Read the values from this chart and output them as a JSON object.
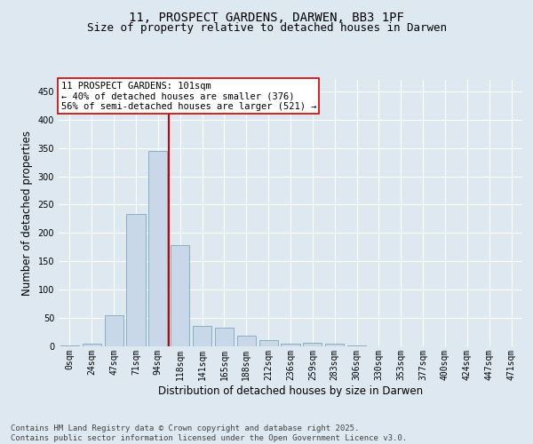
{
  "title_line1": "11, PROSPECT GARDENS, DARWEN, BB3 1PF",
  "title_line2": "Size of property relative to detached houses in Darwen",
  "xlabel": "Distribution of detached houses by size in Darwen",
  "ylabel": "Number of detached properties",
  "bar_labels": [
    "0sqm",
    "24sqm",
    "47sqm",
    "71sqm",
    "94sqm",
    "118sqm",
    "141sqm",
    "165sqm",
    "188sqm",
    "212sqm",
    "236sqm",
    "259sqm",
    "283sqm",
    "306sqm",
    "330sqm",
    "353sqm",
    "377sqm",
    "400sqm",
    "424sqm",
    "447sqm",
    "471sqm"
  ],
  "bar_values": [
    2,
    5,
    55,
    233,
    345,
    178,
    36,
    33,
    19,
    11,
    5,
    6,
    5,
    1,
    0,
    0,
    0,
    0,
    0,
    0,
    0
  ],
  "bar_color": "#c8d8e8",
  "bar_edge_color": "#7aaabb",
  "property_line_x": 4.5,
  "annotation_title": "11 PROSPECT GARDENS: 101sqm",
  "annotation_line1": "← 40% of detached houses are smaller (376)",
  "annotation_line2": "56% of semi-detached houses are larger (521) →",
  "vline_color": "#cc0000",
  "annotation_box_facecolor": "#ffffff",
  "annotation_box_edgecolor": "#cc0000",
  "ylim": [
    0,
    470
  ],
  "yticks": [
    0,
    50,
    100,
    150,
    200,
    250,
    300,
    350,
    400,
    450
  ],
  "background_color": "#dde8f0",
  "grid_color": "#ffffff",
  "footer_line1": "Contains HM Land Registry data © Crown copyright and database right 2025.",
  "footer_line2": "Contains public sector information licensed under the Open Government Licence v3.0.",
  "title_fontsize": 10,
  "subtitle_fontsize": 9,
  "axis_label_fontsize": 8.5,
  "tick_fontsize": 7,
  "annotation_fontsize": 7.5,
  "footer_fontsize": 6.5
}
